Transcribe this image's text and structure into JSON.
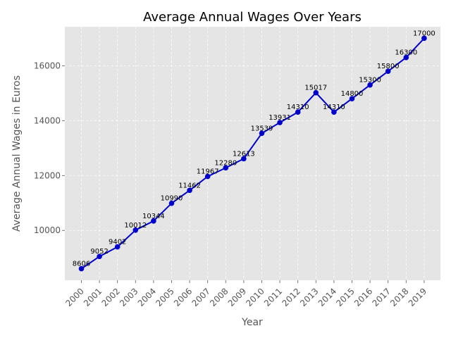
{
  "chart_data": {
    "type": "line",
    "title": "Average Annual Wages Over Years",
    "xlabel": "Year",
    "ylabel": "Average Annual Wages in Euros",
    "categories": [
      "2000",
      "2001",
      "2002",
      "2003",
      "2004",
      "2005",
      "2006",
      "2007",
      "2008",
      "2009",
      "2010",
      "2011",
      "2012",
      "2013",
      "2014",
      "2015",
      "2016",
      "2017",
      "2018",
      "2019"
    ],
    "series": [
      {
        "values": [
          8606,
          9052,
          9402,
          10012,
          10344,
          10990,
          11462,
          11967,
          12280,
          12613,
          13539,
          13931,
          14310,
          15017,
          14310,
          14800,
          15300,
          15800,
          16300,
          17000
        ]
      }
    ],
    "data_labels": [
      "8606",
      "9052",
      "9402",
      "10012",
      "10344",
      "10990",
      "11462",
      "11967",
      "12280",
      "12613",
      "13539",
      "13931",
      "14310",
      "15017",
      "14310",
      "14800",
      "15300",
      "15800",
      "16300",
      "17000"
    ],
    "yticks": [
      10000,
      12000,
      14000,
      16000
    ],
    "ytick_labels": [
      "10000",
      "12000",
      "14000",
      "16000"
    ],
    "ylim": [
      8185,
      17420
    ],
    "grid": true,
    "colors": {
      "line": "#0000cc",
      "marker": "#0000cc",
      "plot_background": "#e5e5e5",
      "grid": "#ffffff",
      "figure_background": "#ffffff"
    }
  }
}
